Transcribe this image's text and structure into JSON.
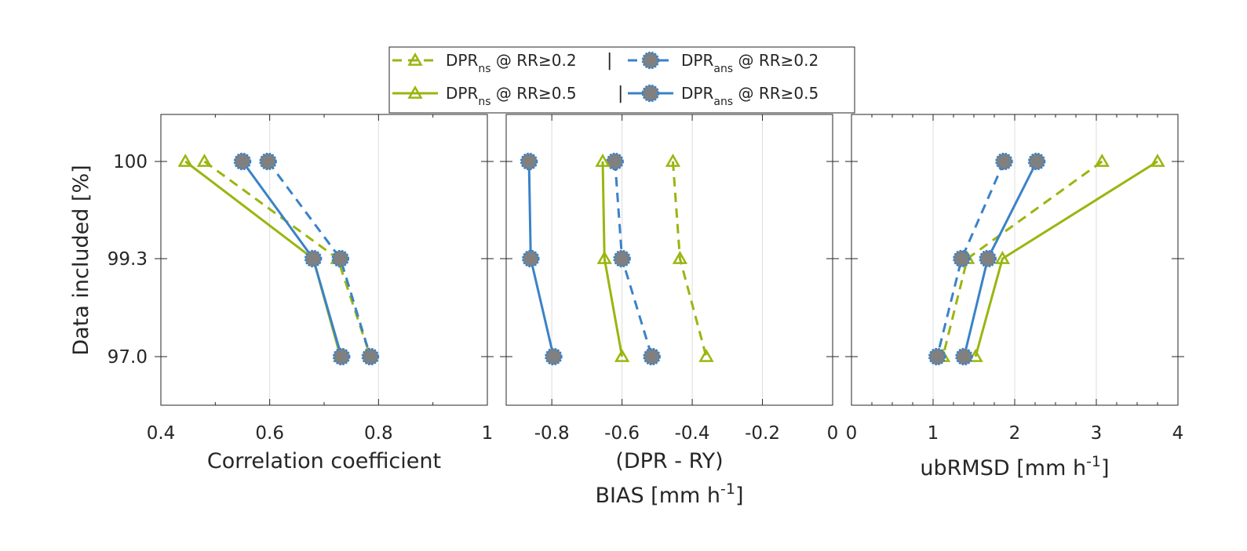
{
  "colors": {
    "green": "#99b60f",
    "blue": "#3a82c8",
    "marker_fill": "#808080",
    "axis": "#262626",
    "grid": "#dcdcdc"
  },
  "legend": {
    "entries": [
      {
        "main": "DPR",
        "sub": "ns",
        "rest": " @ RR≥0.2",
        "style": "dashed",
        "color": "green",
        "marker": "triangle"
      },
      {
        "main": "DPR",
        "sub": "ans",
        "rest": " @ RR≥0.2",
        "style": "dashed",
        "color": "blue",
        "marker": "circle"
      },
      {
        "main": "DPR",
        "sub": "ns",
        "rest": " @ RR≥0.5",
        "style": "solid",
        "color": "green",
        "marker": "triangle"
      },
      {
        "main": "DPR",
        "sub": "ans",
        "rest": " @ RR≥0.5",
        "style": "solid",
        "color": "blue",
        "marker": "circle"
      }
    ],
    "separator": "|",
    "placement": "top-center"
  },
  "y_axis": {
    "label": "Data included [%]",
    "ticks": [
      "100",
      "99.3",
      "97.0"
    ]
  },
  "chart_data": [
    {
      "type": "line",
      "xlabel": "Correlation coefficient",
      "xlabel_unit": "",
      "xlabel_unit_sup": "",
      "xlabel_unit_end": "",
      "xlim": [
        0.4,
        1
      ],
      "xticks": [
        0.4,
        0.6,
        0.8,
        1
      ],
      "xtick_labels": [
        "0.4",
        "0.6",
        "0.8",
        "1"
      ],
      "xminor": [
        0.5,
        0.7,
        0.9
      ],
      "categories": [
        "100",
        "99.3",
        "97.0"
      ],
      "grid": true,
      "series": [
        {
          "name": "DPR_ns @ RR≥0.2",
          "color": "green",
          "style": "dashed",
          "marker": "triangle",
          "x": [
            0.48,
            0.725,
            0.785
          ]
        },
        {
          "name": "DPR_ans @ RR≥0.2",
          "color": "blue",
          "style": "dashed",
          "marker": "circle",
          "x": [
            0.597,
            0.73,
            0.785
          ]
        },
        {
          "name": "DPR_ns @ RR≥0.5",
          "color": "green",
          "style": "solid",
          "marker": "triangle",
          "x": [
            0.445,
            0.68,
            0.73
          ]
        },
        {
          "name": "DPR_ans @ RR≥0.5",
          "color": "blue",
          "style": "solid",
          "marker": "circle",
          "x": [
            0.55,
            0.68,
            0.732
          ]
        }
      ]
    },
    {
      "type": "line",
      "xlabel": "(DPR - RY)",
      "xlabel_unit": "BIAS [mm h",
      "xlabel_unit_sup": "-1",
      "xlabel_unit_end": "]",
      "xlim": [
        -0.93,
        0
      ],
      "xticks": [
        -0.8,
        -0.6,
        -0.4,
        -0.2,
        0
      ],
      "xtick_labels": [
        "-0.8",
        "-0.6",
        "-0.4",
        "-0.2",
        "0"
      ],
      "xminor": [],
      "categories": [
        "100",
        "99.3",
        "97.0"
      ],
      "grid": true,
      "series": [
        {
          "name": "DPR_ns @ RR≥0.2",
          "color": "green",
          "style": "dashed",
          "marker": "triangle",
          "x": [
            -0.455,
            -0.435,
            -0.36
          ]
        },
        {
          "name": "DPR_ans @ RR≥0.2",
          "color": "blue",
          "style": "dashed",
          "marker": "circle",
          "x": [
            -0.62,
            -0.6,
            -0.515
          ]
        },
        {
          "name": "DPR_ns @ RR≥0.5",
          "color": "green",
          "style": "solid",
          "marker": "triangle",
          "x": [
            -0.655,
            -0.65,
            -0.6
          ]
        },
        {
          "name": "DPR_ans @ RR≥0.5",
          "color": "blue",
          "style": "solid",
          "marker": "circle",
          "x": [
            -0.865,
            -0.86,
            -0.795
          ]
        }
      ]
    },
    {
      "type": "line",
      "xlabel": "",
      "xlabel_unit": "ubRMSD [mm h",
      "xlabel_unit_sup": "-1",
      "xlabel_unit_end": "]",
      "xlim": [
        0,
        4
      ],
      "xticks": [
        0,
        1,
        2,
        3,
        4
      ],
      "xtick_labels": [
        "0",
        "1",
        "2",
        "3",
        "4"
      ],
      "xminor": [
        0.25,
        0.5,
        0.75,
        1.25,
        1.5,
        1.75,
        2.25,
        2.5,
        2.75,
        3.25,
        3.5,
        3.75
      ],
      "categories": [
        "100",
        "99.3",
        "97.0"
      ],
      "grid": true,
      "series": [
        {
          "name": "DPR_ns @ RR≥0.2",
          "color": "green",
          "style": "dashed",
          "marker": "triangle",
          "x": [
            3.07,
            1.42,
            1.12
          ]
        },
        {
          "name": "DPR_ans @ RR≥0.2",
          "color": "blue",
          "style": "dashed",
          "marker": "circle",
          "x": [
            1.87,
            1.35,
            1.05
          ]
        },
        {
          "name": "DPR_ns @ RR≥0.5",
          "color": "green",
          "style": "solid",
          "marker": "triangle",
          "x": [
            3.75,
            1.85,
            1.52
          ]
        },
        {
          "name": "DPR_ans @ RR≥0.5",
          "color": "blue",
          "style": "solid",
          "marker": "circle",
          "x": [
            2.27,
            1.67,
            1.38
          ]
        }
      ]
    }
  ]
}
